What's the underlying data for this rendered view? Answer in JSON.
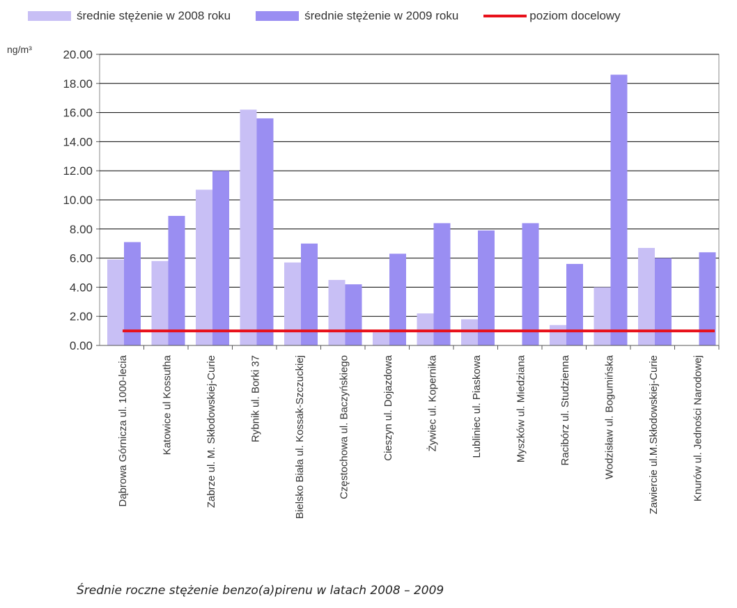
{
  "chart_data": {
    "type": "bar",
    "unit_label": "ng/m³",
    "categories": [
      "Dąbrowa Górnicza ul. 1000-lecia",
      "Katowice ul Kossutha",
      "Zabrze ul. M. Skłodowskiej-Curie",
      "Rybnik ul. Borki 37",
      "Bielsko Biała ul. Kossak-Szczuckiej",
      "Częstochowa ul. Baczyńskiego",
      "Cieszyn ul. Dojazdowa",
      "Żywiec ul. Kopernika",
      "Lubliniec ul. Piaskowa",
      "Myszków ul. Miedziana",
      "Racibórz ul. Studzienna",
      "Wodzisław ul. Bogumińska",
      "Zawiercie ul.M.Skłodowskiej-Curie",
      "Knurów ul. Jedności Narodowej"
    ],
    "series": [
      {
        "name": "średnie stężenie  w 2008 roku",
        "color": "#c8bff5",
        "values": [
          5.9,
          5.8,
          10.7,
          16.2,
          5.7,
          4.5,
          0.9,
          2.2,
          1.8,
          0,
          1.4,
          4.0,
          6.7,
          0
        ]
      },
      {
        "name": "średnie stężenie w 2009 roku",
        "color": "#9a8ef2",
        "values": [
          7.1,
          8.9,
          12.0,
          15.6,
          7.0,
          4.2,
          6.3,
          8.4,
          7.9,
          8.4,
          5.6,
          18.6,
          6.0,
          6.4
        ]
      }
    ],
    "target_line": {
      "name": "poziom docelowy",
      "value": 1.0,
      "color": "#e8101a"
    },
    "ylim": [
      0,
      20
    ],
    "yticks": [
      "0.00",
      "2.00",
      "4.00",
      "6.00",
      "8.00",
      "10.00",
      "12.00",
      "14.00",
      "16.00",
      "18.00",
      "20.00"
    ],
    "grid": true,
    "legend_position": "top",
    "caption": "Średnie roczne stężenie benzo(a)pirenu w latach 2008 – 2009"
  }
}
